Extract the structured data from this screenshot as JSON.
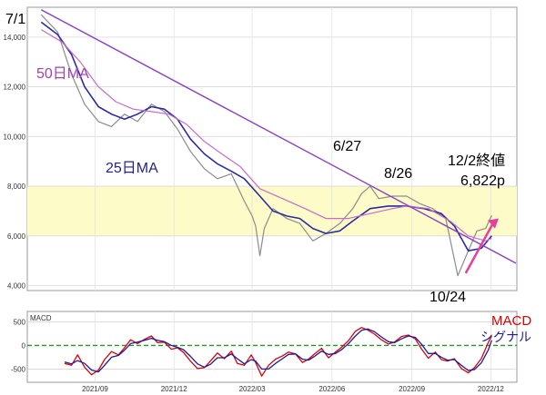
{
  "chart_data": [
    {
      "type": "line",
      "panel": "price",
      "ylim": [
        3800,
        15200
      ],
      "y_ticks": [
        4000,
        6000,
        8000,
        10000,
        12000,
        14000
      ],
      "y_tick_labels": [
        "4,000",
        "6,000",
        "8,000",
        "10,000",
        "12,000",
        "14,000"
      ],
      "highlight_band": {
        "from": 6000,
        "to": 8000,
        "color": "#fdfbc7"
      },
      "series": [
        {
          "name": "",
          "role": "price",
          "color": "#8c8c8c",
          "x": [
            "2021-07-01",
            "2021-07-20",
            "2021-08-05",
            "2021-08-20",
            "2021-09-05",
            "2021-09-20",
            "2021-10-05",
            "2021-10-20",
            "2021-11-05",
            "2021-11-20",
            "2021-12-05",
            "2021-12-20",
            "2022-01-05",
            "2022-01-20",
            "2022-02-05",
            "2022-02-20",
            "2022-03-01",
            "2022-03-05",
            "2022-03-10",
            "2022-03-15",
            "2022-03-25",
            "2022-04-10",
            "2022-04-25",
            "2022-05-10",
            "2022-05-25",
            "2022-06-10",
            "2022-06-25",
            "2022-07-05",
            "2022-07-15",
            "2022-07-25",
            "2022-08-10",
            "2022-08-26",
            "2022-09-10",
            "2022-09-25",
            "2022-10-10",
            "2022-10-24",
            "2022-11-05",
            "2022-11-15",
            "2022-11-25",
            "2022-12-02"
          ],
          "y": [
            14900,
            14200,
            12500,
            11300,
            10600,
            10400,
            10900,
            10600,
            11300,
            11000,
            10300,
            9400,
            8700,
            8300,
            8500,
            7400,
            6800,
            6400,
            5200,
            6300,
            7100,
            6700,
            6500,
            5800,
            6100,
            6500,
            7100,
            7700,
            8000,
            7500,
            7600,
            7600,
            7300,
            7100,
            6700,
            4400,
            5400,
            6200,
            6300,
            6822
          ]
        },
        {
          "name": "25日MA",
          "role": "ma25",
          "color": "#2b2ba8",
          "x": [
            "2021-07-01",
            "2021-07-20",
            "2021-08-05",
            "2021-08-20",
            "2021-09-05",
            "2021-09-20",
            "2021-10-05",
            "2021-10-20",
            "2021-11-05",
            "2021-11-20",
            "2021-12-05",
            "2021-12-20",
            "2022-01-05",
            "2022-01-20",
            "2022-02-05",
            "2022-02-20",
            "2022-03-10",
            "2022-03-25",
            "2022-04-10",
            "2022-04-25",
            "2022-05-10",
            "2022-05-25",
            "2022-06-10",
            "2022-06-25",
            "2022-07-15",
            "2022-08-05",
            "2022-08-26",
            "2022-09-15",
            "2022-10-05",
            "2022-10-20",
            "2022-11-05",
            "2022-11-20",
            "2022-12-02"
          ],
          "y": [
            14600,
            14100,
            13300,
            12000,
            11200,
            10900,
            10700,
            10900,
            11200,
            11100,
            10700,
            9900,
            9300,
            8900,
            8600,
            8300,
            7600,
            7000,
            6800,
            6700,
            6300,
            6100,
            6200,
            6600,
            7100,
            7200,
            7200,
            7100,
            6900,
            6400,
            5400,
            5500,
            6000
          ]
        },
        {
          "name": "50日MA",
          "role": "ma50",
          "color": "#c86bcc",
          "x": [
            "2021-07-01",
            "2021-07-25",
            "2021-08-15",
            "2021-09-05",
            "2021-09-25",
            "2021-10-15",
            "2021-11-05",
            "2021-11-25",
            "2021-12-15",
            "2022-01-05",
            "2022-01-25",
            "2022-02-15",
            "2022-03-10",
            "2022-04-05",
            "2022-05-01",
            "2022-05-25",
            "2022-06-20",
            "2022-07-15",
            "2022-08-10",
            "2022-08-26",
            "2022-09-20",
            "2022-10-15",
            "2022-11-05",
            "2022-11-25",
            "2022-12-02"
          ],
          "y": [
            14300,
            13800,
            13000,
            12000,
            11400,
            11100,
            11000,
            10900,
            10500,
            9800,
            9300,
            8800,
            7900,
            7500,
            7100,
            6700,
            6700,
            6900,
            7100,
            7200,
            7100,
            6600,
            6000,
            5800,
            5900
          ]
        },
        {
          "name": "",
          "role": "trendline",
          "color": "#8a3dc7",
          "x": [
            "2021-07-01",
            "2022-12-30"
          ],
          "y": [
            15100,
            4900
          ]
        }
      ],
      "annotations": [
        {
          "text": "7/1",
          "color": "#000000"
        },
        {
          "text": "50日MA",
          "color": "#a53fb5"
        },
        {
          "text": "25日MA",
          "color": "#1f1f9a"
        },
        {
          "text": "6/27",
          "color": "#000000"
        },
        {
          "text": "8/26",
          "color": "#000000"
        },
        {
          "text": "12/2終値",
          "color": "#000000"
        },
        {
          "text": "6,822p",
          "color": "#000000"
        },
        {
          "text": "10/24",
          "color": "#000000"
        }
      ],
      "arrow_color": "#e83e9e"
    },
    {
      "type": "line",
      "panel": "macd",
      "panel_label": "MACD",
      "ylim": [
        -780,
        720
      ],
      "y_ticks": [
        500,
        0,
        -500
      ],
      "y_tick_labels": [
        "500",
        "0",
        "-500"
      ],
      "zero_line_color": "#1e9a1e",
      "series": [
        {
          "name": "MACD",
          "color": "#e00000",
          "x": [
            "2021-07-28",
            "2021-08-05",
            "2021-08-12",
            "2021-08-20",
            "2021-08-28",
            "2021-09-05",
            "2021-09-12",
            "2021-09-20",
            "2021-09-28",
            "2021-10-05",
            "2021-10-12",
            "2021-10-20",
            "2021-10-28",
            "2021-11-05",
            "2021-11-12",
            "2021-11-20",
            "2021-11-28",
            "2021-12-05",
            "2021-12-12",
            "2021-12-20",
            "2021-12-28",
            "2022-01-05",
            "2022-01-12",
            "2022-01-20",
            "2022-01-28",
            "2022-02-05",
            "2022-02-12",
            "2022-02-20",
            "2022-02-28",
            "2022-03-05",
            "2022-03-12",
            "2022-03-20",
            "2022-03-28",
            "2022-04-05",
            "2022-04-12",
            "2022-04-20",
            "2022-04-28",
            "2022-05-05",
            "2022-05-12",
            "2022-05-20",
            "2022-05-28",
            "2022-06-05",
            "2022-06-12",
            "2022-06-20",
            "2022-06-28",
            "2022-07-05",
            "2022-07-12",
            "2022-07-20",
            "2022-07-28",
            "2022-08-05",
            "2022-08-12",
            "2022-08-20",
            "2022-08-28",
            "2022-09-05",
            "2022-09-12",
            "2022-09-20",
            "2022-09-28",
            "2022-10-05",
            "2022-10-12",
            "2022-10-20",
            "2022-10-28",
            "2022-11-05",
            "2022-11-12",
            "2022-11-20",
            "2022-11-28",
            "2022-12-02"
          ],
          "y": [
            -380,
            -420,
            -200,
            -460,
            -620,
            -520,
            -300,
            -130,
            -200,
            -50,
            120,
            40,
            130,
            200,
            60,
            70,
            -80,
            -50,
            -150,
            -330,
            -490,
            -470,
            -330,
            -160,
            -280,
            -120,
            -380,
            -420,
            -200,
            -360,
            -650,
            -420,
            -290,
            -220,
            -140,
            -180,
            -360,
            -290,
            -180,
            -60,
            -260,
            -140,
            -40,
            100,
            300,
            380,
            330,
            240,
            120,
            30,
            70,
            190,
            220,
            140,
            -70,
            -270,
            -140,
            -300,
            -330,
            -280,
            -490,
            -580,
            -470,
            -280,
            60,
            200
          ]
        },
        {
          "name": "シグナル",
          "color": "#1a1aa8",
          "x": [
            "2021-07-28",
            "2021-08-05",
            "2021-08-12",
            "2021-08-20",
            "2021-08-28",
            "2021-09-05",
            "2021-09-12",
            "2021-09-20",
            "2021-09-28",
            "2021-10-05",
            "2021-10-12",
            "2021-10-20",
            "2021-10-28",
            "2021-11-05",
            "2021-11-12",
            "2021-11-20",
            "2021-11-28",
            "2021-12-05",
            "2021-12-12",
            "2021-12-20",
            "2021-12-28",
            "2022-01-05",
            "2022-01-12",
            "2022-01-20",
            "2022-01-28",
            "2022-02-05",
            "2022-02-12",
            "2022-02-20",
            "2022-02-28",
            "2022-03-05",
            "2022-03-12",
            "2022-03-20",
            "2022-03-28",
            "2022-04-05",
            "2022-04-12",
            "2022-04-20",
            "2022-04-28",
            "2022-05-05",
            "2022-05-12",
            "2022-05-20",
            "2022-05-28",
            "2022-06-05",
            "2022-06-12",
            "2022-06-20",
            "2022-06-28",
            "2022-07-05",
            "2022-07-12",
            "2022-07-20",
            "2022-07-28",
            "2022-08-05",
            "2022-08-12",
            "2022-08-20",
            "2022-08-28",
            "2022-09-05",
            "2022-09-12",
            "2022-09-20",
            "2022-09-28",
            "2022-10-05",
            "2022-10-12",
            "2022-10-20",
            "2022-10-28",
            "2022-11-05",
            "2022-11-12",
            "2022-11-20",
            "2022-11-28",
            "2022-12-02"
          ],
          "y": [
            -350,
            -390,
            -320,
            -380,
            -520,
            -560,
            -420,
            -250,
            -210,
            -100,
            40,
            70,
            110,
            150,
            110,
            80,
            0,
            -40,
            -90,
            -230,
            -390,
            -460,
            -400,
            -260,
            -260,
            -180,
            -280,
            -390,
            -300,
            -330,
            -500,
            -500,
            -380,
            -280,
            -190,
            -180,
            -290,
            -310,
            -230,
            -120,
            -190,
            -170,
            -90,
            40,
            200,
            320,
            350,
            290,
            180,
            80,
            60,
            140,
            200,
            170,
            30,
            -170,
            -170,
            -250,
            -310,
            -300,
            -420,
            -530,
            -510,
            -370,
            -100,
            110
          ]
        }
      ],
      "x_ticks": [
        "2021-09-01",
        "2021-12-01",
        "2022-03-01",
        "2022-06-01",
        "2022-09-01",
        "2022-12-01"
      ],
      "x_tick_labels": [
        "2021/09",
        "2021/12",
        "2022/03",
        "2022/06",
        "2022/09",
        "2022/12"
      ]
    }
  ]
}
